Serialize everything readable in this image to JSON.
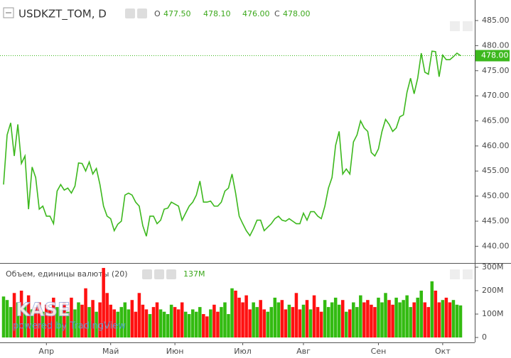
{
  "header": {
    "symbol": "USDKZT_TOM, D",
    "open_letter": "O",
    "open": "477.50",
    "high": "478.10",
    "low": "476.00",
    "close_letter": "C",
    "close": "478.00"
  },
  "watermark": {
    "logo": "KASE",
    "credit": "powered by TradingView"
  },
  "chart_data": [
    {
      "type": "line",
      "color": "#3cb81d",
      "last_value_label": "478.00",
      "ylim": [
        436.8,
        489.1
      ],
      "yticks": [
        {
          "value": 440,
          "label": "440.00"
        },
        {
          "value": 445,
          "label": "445.00"
        },
        {
          "value": 450,
          "label": "450.00"
        },
        {
          "value": 455,
          "label": "455.00"
        },
        {
          "value": 460,
          "label": "460.00"
        },
        {
          "value": 465,
          "label": "465.00"
        },
        {
          "value": 470,
          "label": "470.00"
        },
        {
          "value": 475,
          "label": "475.00"
        },
        {
          "value": 480,
          "label": "480.00"
        },
        {
          "value": 485,
          "label": "485.00"
        }
      ],
      "values": [
        452.3,
        462.2,
        464.6,
        458,
        464.3,
        456.5,
        458,
        447.4,
        455.8,
        453.7,
        447.4,
        448,
        446,
        446,
        444.5,
        451,
        452.3,
        451.2,
        451.6,
        450.6,
        452,
        456.6,
        456.5,
        455,
        456.8,
        454.4,
        455.5,
        452.3,
        448,
        446,
        445.5,
        443.1,
        444.4,
        445,
        450.2,
        450.6,
        450.2,
        448.8,
        448,
        444.1,
        442,
        446,
        446,
        444.5,
        445.2,
        447.4,
        447.6,
        448.8,
        448.4,
        448,
        445.2,
        446.6,
        448,
        448.8,
        450.2,
        453,
        448.8,
        448.8,
        449,
        448,
        448,
        448.8,
        451,
        451.6,
        454.4,
        450.6,
        446,
        444.5,
        443.1,
        442.1,
        443.5,
        445.2,
        445.2,
        443.1,
        443.8,
        444.5,
        445.5,
        446,
        445.2,
        445,
        445.5,
        445,
        444.5,
        444.5,
        446.6,
        445.2,
        446.9,
        446.9,
        446,
        445.5,
        448,
        451.6,
        453.7,
        460.1,
        462.9,
        454.4,
        455.4,
        454.4,
        460.8,
        462.2,
        465,
        463.6,
        462.9,
        458.7,
        458,
        459.4,
        462.9,
        465.3,
        464.3,
        462.9,
        463.6,
        465.8,
        466.2,
        470.7,
        473.5,
        470.4,
        473.5,
        478.5,
        474.7,
        474.3,
        478.9,
        478.8,
        473.8,
        478.1,
        477.2,
        477.2,
        477.8,
        478.5,
        478
      ]
    },
    {
      "type": "bar",
      "title": "Объем, единицы валюты (20)",
      "last_value_label": "137M",
      "ylim": [
        -21,
        315
      ],
      "yticks": [
        0,
        {
          "value": 100,
          "label": "100M"
        },
        {
          "value": 200,
          "label": "200M"
        },
        {
          "value": 300,
          "label": "300M"
        }
      ],
      "categories": [
        null,
        null,
        null,
        null,
        null,
        null,
        null,
        null,
        null,
        null,
        null,
        null,
        "Апр",
        null,
        null,
        null,
        null,
        null,
        null,
        null,
        null,
        null,
        null,
        null,
        null,
        null,
        null,
        null,
        null,
        null,
        "Май",
        null,
        null,
        null,
        null,
        null,
        null,
        null,
        null,
        null,
        null,
        null,
        null,
        null,
        null,
        null,
        null,
        null,
        "Июн",
        null,
        null,
        null,
        null,
        null,
        null,
        null,
        null,
        null,
        null,
        null,
        null,
        null,
        null,
        null,
        null,
        null,
        null,
        "Июл",
        null,
        null,
        null,
        null,
        null,
        null,
        null,
        null,
        null,
        null,
        null,
        null,
        null,
        null,
        null,
        null,
        "Авг",
        null,
        null,
        null,
        null,
        null,
        null,
        null,
        null,
        null,
        null,
        null,
        null,
        null,
        null,
        null,
        null,
        null,
        null,
        null,
        null,
        "Сен",
        null,
        null,
        null,
        null,
        null,
        null,
        null,
        null,
        null,
        null,
        null,
        null,
        null,
        null,
        null,
        null,
        null,
        "Окт",
        null,
        null,
        null,
        null,
        null
      ],
      "values": [
        175,
        160,
        130,
        190,
        150,
        200,
        140,
        180,
        120,
        130,
        150,
        110,
        140,
        120,
        170,
        130,
        120,
        150,
        110,
        170,
        120,
        150,
        140,
        210,
        130,
        160,
        110,
        150,
        297,
        190,
        140,
        120,
        110,
        130,
        150,
        120,
        160,
        110,
        190,
        140,
        120,
        100,
        130,
        150,
        120,
        110,
        100,
        140,
        130,
        120,
        150,
        110,
        100,
        120,
        110,
        130,
        100,
        90,
        120,
        140,
        110,
        130,
        150,
        100,
        210,
        200,
        170,
        150,
        180,
        120,
        150,
        130,
        160,
        120,
        110,
        130,
        170,
        150,
        160,
        120,
        140,
        130,
        190,
        120,
        140,
        160,
        120,
        180,
        130,
        110,
        160,
        130,
        150,
        170,
        140,
        160,
        110,
        120,
        150,
        130,
        180,
        150,
        160,
        140,
        130,
        170,
        150,
        190,
        160,
        140,
        170,
        150,
        160,
        180,
        130,
        150,
        170,
        200,
        150,
        130,
        240,
        200,
        150,
        160,
        170,
        150,
        160,
        140,
        137
      ],
      "colors": [
        "#3b1",
        "#3b1",
        "#3b1",
        "#f11",
        "#3b1",
        "#f11",
        "#3b1",
        "#f11",
        "#3b1",
        "#f11",
        "#f11",
        "#3b1",
        "#f11",
        "#f11",
        "#f11",
        "#3b1",
        "#3b1",
        "#f11",
        "#3b1",
        "#f11",
        "#3b1",
        "#3b1",
        "#f11",
        "#f11",
        "#3b1",
        "#f11",
        "#3b1",
        "#f11",
        "#f11",
        "#f11",
        "#f11",
        "#f11",
        "#3b1",
        "#3b1",
        "#3b1",
        "#3b1",
        "#f11",
        "#f11",
        "#f11",
        "#f11",
        "#f11",
        "#3b1",
        "#f11",
        "#f11",
        "#3b1",
        "#3b1",
        "#3b1",
        "#3b1",
        "#f11",
        "#f11",
        "#f11",
        "#3b1",
        "#3b1",
        "#3b1",
        "#3b1",
        "#3b1",
        "#f11",
        "#f11",
        "#3b1",
        "#f11",
        "#f11",
        "#3b1",
        "#3b1",
        "#3b1",
        "#3b1",
        "#f11",
        "#f11",
        "#f11",
        "#f11",
        "#f11",
        "#3b1",
        "#3b1",
        "#f11",
        "#f11",
        "#3b1",
        "#3b1",
        "#3b1",
        "#3b1",
        "#f11",
        "#f11",
        "#3b1",
        "#f11",
        "#f11",
        "#f11",
        "#3b1",
        "#f11",
        "#3b1",
        "#f11",
        "#f11",
        "#f11",
        "#3b1",
        "#3b1",
        "#3b1",
        "#3b1",
        "#3b1",
        "#f11",
        "#3b1",
        "#f11",
        "#3b1",
        "#3b1",
        "#3b1",
        "#f11",
        "#f11",
        "#f11",
        "#f11",
        "#3b1",
        "#3b1",
        "#3b1",
        "#f11",
        "#f11",
        "#3b1",
        "#3b1",
        "#3b1",
        "#3b1",
        "#3b1",
        "#f11",
        "#3b1",
        "#3b1",
        "#f11",
        "#f11",
        "#3b1",
        "#f11",
        "#f11",
        "#3b1",
        "#f11",
        "#f11",
        "#3b1",
        "#3b1",
        "#3b1"
      ]
    }
  ]
}
